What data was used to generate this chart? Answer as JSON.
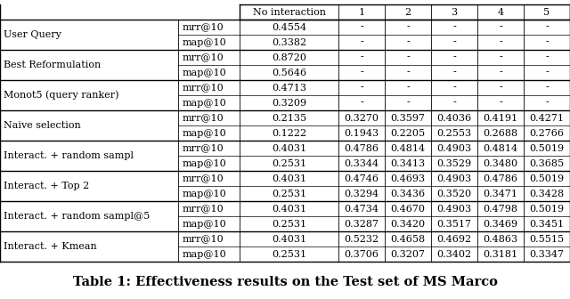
{
  "title": "Table 1: Effectiveness results on the Test set of MS Marco",
  "col_headers": [
    "No interaction",
    "1",
    "2",
    "3",
    "4",
    "5"
  ],
  "rows": [
    {
      "group": "User Query",
      "metric": "mrr@10",
      "values": [
        "0.4554",
        "-",
        "-",
        "-",
        "-",
        "-"
      ]
    },
    {
      "group": "",
      "metric": "map@10",
      "values": [
        "0.3382",
        "-",
        "-",
        "-",
        "-",
        "-"
      ]
    },
    {
      "group": "Best Reformulation",
      "metric": "mrr@10",
      "values": [
        "0.8720",
        "-",
        "-",
        "-",
        "-",
        "-"
      ]
    },
    {
      "group": "",
      "metric": "map@10",
      "values": [
        "0.5646",
        "-",
        "-",
        "-",
        "-",
        "-"
      ]
    },
    {
      "group": "Monot5 (query ranker)",
      "metric": "mrr@10",
      "values": [
        "0.4713",
        "-",
        "-",
        "-",
        "-",
        "-"
      ]
    },
    {
      "group": "",
      "metric": "map@10",
      "values": [
        "0.3209",
        "-",
        "-",
        "-",
        "-",
        "-"
      ]
    },
    {
      "group": "Naive selection",
      "metric": "mrr@10",
      "values": [
        "0.2135",
        "0.3270",
        "0.3597",
        "0.4036",
        "0.4191",
        "0.4271"
      ]
    },
    {
      "group": "",
      "metric": "map@10",
      "values": [
        "0.1222",
        "0.1943",
        "0.2205",
        "0.2553",
        "0.2688",
        "0.2766"
      ]
    },
    {
      "group": "Interact. + random sampl",
      "metric": "mrr@10",
      "values": [
        "0.4031",
        "0.4786",
        "0.4814",
        "0.4903",
        "0.4814",
        "0.5019"
      ]
    },
    {
      "group": "",
      "metric": "map@10",
      "values": [
        "0.2531",
        "0.3344",
        "0.3413",
        "0.3529",
        "0.3480",
        "0.3685"
      ]
    },
    {
      "group": "Interact. + Top 2",
      "metric": "mrr@10",
      "values": [
        "0.4031",
        "0.4746",
        "0.4693",
        "0.4903",
        "0.4786",
        "0.5019"
      ]
    },
    {
      "group": "",
      "metric": "map@10",
      "values": [
        "0.2531",
        "0.3294",
        "0.3436",
        "0.3520",
        "0.3471",
        "0.3428"
      ]
    },
    {
      "group": "Interact. + random sampl@5",
      "metric": "mrr@10",
      "values": [
        "0.4031",
        "0.4734",
        "0.4670",
        "0.4903",
        "0.4798",
        "0.5019"
      ]
    },
    {
      "group": "",
      "metric": "map@10",
      "values": [
        "0.2531",
        "0.3287",
        "0.3420",
        "0.3517",
        "0.3469",
        "0.3451"
      ]
    },
    {
      "group": "Interact. + Kmean",
      "metric": "mrr@10",
      "values": [
        "0.4031",
        "0.5232",
        "0.4658",
        "0.4692",
        "0.4863",
        "0.5515"
      ]
    },
    {
      "group": "",
      "metric": "map@10",
      "values": [
        "0.2531",
        "0.3706",
        "0.3207",
        "0.3402",
        "0.3181",
        "0.3347"
      ]
    }
  ],
  "font_family": "serif",
  "title_fontsize": 10.5,
  "cell_fontsize": 8.0,
  "header_fontsize": 8.0,
  "bg_color": "#ffffff",
  "fig_width": 6.4,
  "fig_height": 3.36,
  "dpi": 100
}
